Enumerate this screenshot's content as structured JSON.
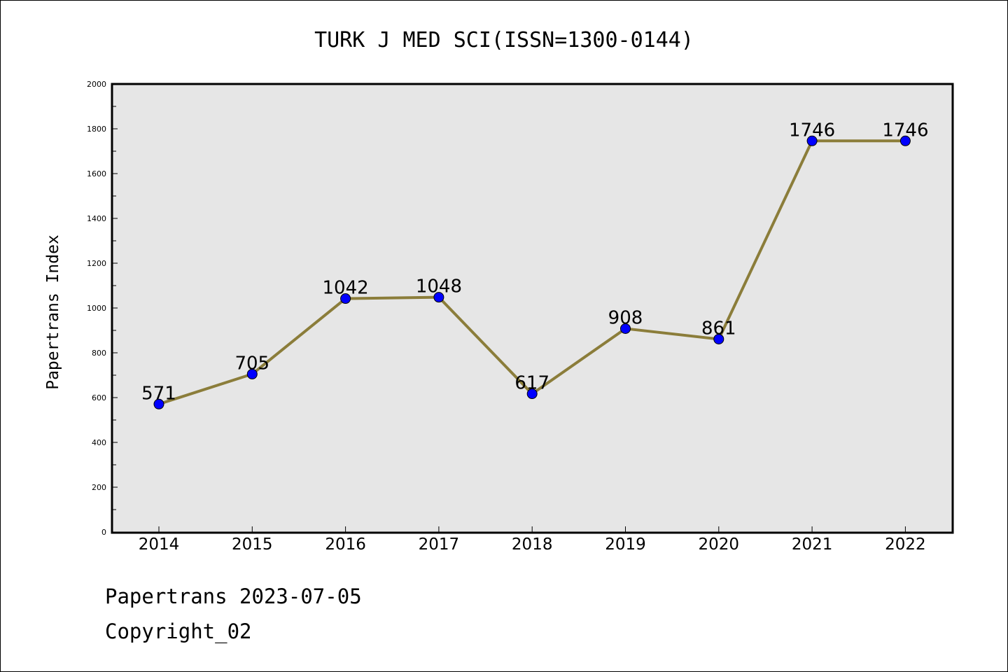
{
  "chart_data": {
    "type": "line",
    "title": "TURK J MED SCI(ISSN=1300-0144)",
    "xlabel": "",
    "ylabel": "Papertrans Index",
    "categories": [
      "2014",
      "2015",
      "2016",
      "2017",
      "2018",
      "2019",
      "2020",
      "2021",
      "2022"
    ],
    "series": [
      {
        "values": [
          571,
          705,
          1042,
          1048,
          617,
          908,
          861,
          1746,
          1746
        ]
      }
    ],
    "data_labels": [
      "571",
      "705",
      "1042",
      "1048",
      "617",
      "908",
      "861",
      "1746",
      "1746"
    ],
    "y_ticks": [
      "0",
      "200",
      "400",
      "600",
      "800",
      "1000",
      "1200",
      "1400",
      "1600",
      "1800",
      "2000"
    ],
    "ylim": [
      0,
      2000
    ],
    "grid": false,
    "colors": {
      "line": "#8b7d3a",
      "marker": "#0000ff",
      "plot_background": "#e6e6e6"
    }
  },
  "footer": {
    "date_line": "Papertrans 2023-07-05",
    "copyright_line": "Copyright_02"
  }
}
